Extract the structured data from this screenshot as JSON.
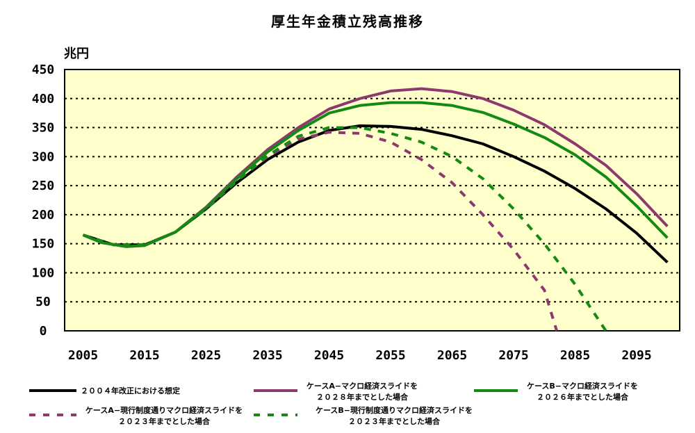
{
  "chart_data": {
    "type": "line",
    "title": "厚生年金積立残高推移",
    "ylabel": "兆円",
    "xlabel": "",
    "xlim": [
      2002,
      2102
    ],
    "ylim": [
      0,
      450
    ],
    "x_ticks": [
      "2005",
      "2015",
      "2025",
      "2035",
      "2045",
      "2055",
      "2065",
      "2075",
      "2085",
      "2095"
    ],
    "y_ticks": [
      "0",
      "50",
      "100",
      "150",
      "200",
      "250",
      "300",
      "350",
      "400",
      "450"
    ],
    "grid": "horizontal dotted",
    "plot_background": "#ffffcc",
    "series": [
      {
        "name": "２００４年改正における想定",
        "legend_lines": [
          "２００４年改正における想定"
        ],
        "color": "#000000",
        "style": "solid",
        "points": [
          [
            2005,
            165
          ],
          [
            2010,
            148
          ],
          [
            2015,
            148
          ],
          [
            2020,
            170
          ],
          [
            2025,
            210
          ],
          [
            2030,
            255
          ],
          [
            2035,
            295
          ],
          [
            2040,
            325
          ],
          [
            2045,
            345
          ],
          [
            2050,
            353
          ],
          [
            2055,
            352
          ],
          [
            2060,
            347
          ],
          [
            2065,
            336
          ],
          [
            2070,
            322
          ],
          [
            2075,
            300
          ],
          [
            2080,
            275
          ],
          [
            2085,
            245
          ],
          [
            2090,
            210
          ],
          [
            2095,
            168
          ],
          [
            2100,
            118
          ]
        ]
      },
      {
        "name": "ケースA−マクロ経済スライドを ２０２８年までとした場合",
        "legend_lines": [
          "ケースA−マクロ経済スライドを",
          "２０２８年までとした場合"
        ],
        "color": "#8c3a6e",
        "style": "solid",
        "points": [
          [
            2005,
            165
          ],
          [
            2008,
            152
          ],
          [
            2012,
            145
          ],
          [
            2015,
            147
          ],
          [
            2020,
            170
          ],
          [
            2025,
            213
          ],
          [
            2030,
            265
          ],
          [
            2035,
            312
          ],
          [
            2040,
            350
          ],
          [
            2045,
            382
          ],
          [
            2050,
            400
          ],
          [
            2055,
            413
          ],
          [
            2060,
            417
          ],
          [
            2065,
            412
          ],
          [
            2070,
            400
          ],
          [
            2075,
            380
          ],
          [
            2080,
            355
          ],
          [
            2085,
            322
          ],
          [
            2090,
            285
          ],
          [
            2095,
            236
          ],
          [
            2100,
            180
          ]
        ]
      },
      {
        "name": "ケースB−マクロ経済スライドを ２０２６年までとした場合",
        "legend_lines": [
          "ケースB−マクロ経済スライドを",
          "２０２６年までとした場合"
        ],
        "color": "#138a13",
        "style": "solid",
        "points": [
          [
            2005,
            165
          ],
          [
            2008,
            152
          ],
          [
            2012,
            145
          ],
          [
            2015,
            147
          ],
          [
            2020,
            170
          ],
          [
            2025,
            212
          ],
          [
            2030,
            262
          ],
          [
            2035,
            308
          ],
          [
            2040,
            345
          ],
          [
            2045,
            375
          ],
          [
            2050,
            388
          ],
          [
            2055,
            393
          ],
          [
            2060,
            393
          ],
          [
            2065,
            388
          ],
          [
            2070,
            376
          ],
          [
            2075,
            356
          ],
          [
            2080,
            333
          ],
          [
            2085,
            303
          ],
          [
            2090,
            265
          ],
          [
            2095,
            215
          ],
          [
            2100,
            160
          ]
        ]
      },
      {
        "name": "ケースA−現行制度通りマクロ経済スライドを ２０２３年までとした場合",
        "legend_lines": [
          "ケースA−現行制度通りマクロ経済スライドを",
          "２０２３年までとした場合"
        ],
        "color": "#8c3a6e",
        "style": "dashed",
        "points": [
          [
            2005,
            165
          ],
          [
            2010,
            148
          ],
          [
            2015,
            148
          ],
          [
            2020,
            170
          ],
          [
            2025,
            210
          ],
          [
            2030,
            258
          ],
          [
            2035,
            300
          ],
          [
            2040,
            330
          ],
          [
            2045,
            342
          ],
          [
            2050,
            340
          ],
          [
            2055,
            325
          ],
          [
            2060,
            295
          ],
          [
            2065,
            255
          ],
          [
            2070,
            200
          ],
          [
            2075,
            140
          ],
          [
            2080,
            70
          ],
          [
            2082,
            0
          ]
        ]
      },
      {
        "name": "ケースB−現行制度通りマクロ経済スライドを ２０２３年までとした場合",
        "legend_lines": [
          "ケースB−現行制度通りマクロ経済スライドを",
          "２０２３年までとした場合"
        ],
        "color": "#138a13",
        "style": "dashed",
        "points": [
          [
            2005,
            165
          ],
          [
            2010,
            148
          ],
          [
            2015,
            148
          ],
          [
            2020,
            170
          ],
          [
            2025,
            210
          ],
          [
            2030,
            258
          ],
          [
            2035,
            302
          ],
          [
            2040,
            335
          ],
          [
            2045,
            350
          ],
          [
            2050,
            350
          ],
          [
            2055,
            340
          ],
          [
            2060,
            325
          ],
          [
            2065,
            300
          ],
          [
            2070,
            262
          ],
          [
            2075,
            210
          ],
          [
            2080,
            150
          ],
          [
            2085,
            80
          ],
          [
            2090,
            0
          ]
        ]
      }
    ]
  }
}
